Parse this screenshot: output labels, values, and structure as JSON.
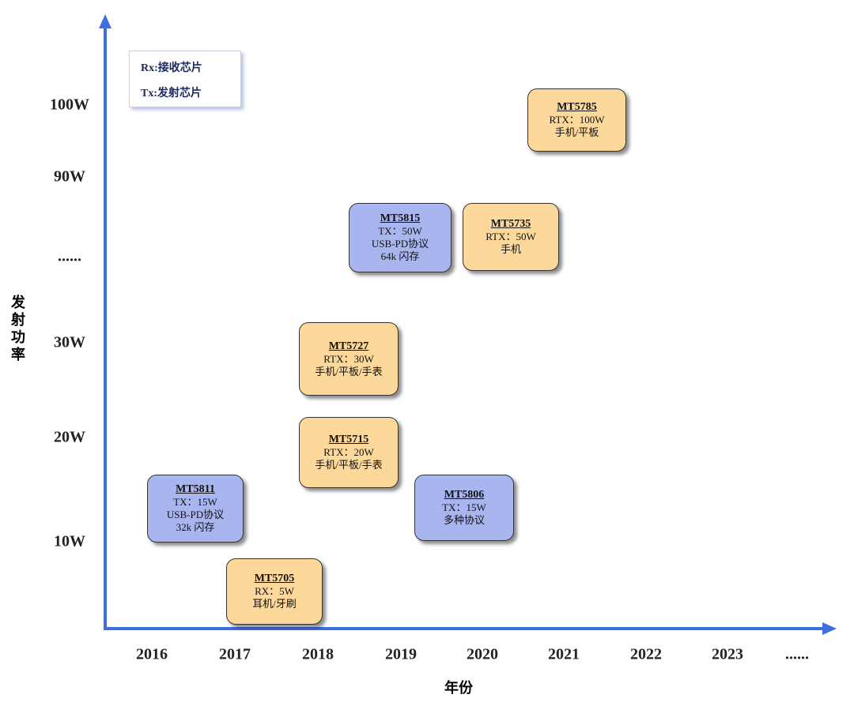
{
  "y_axis": {
    "title": "发射功率",
    "labels": [
      "100W",
      "90W",
      "......",
      "30W",
      "20W",
      "10W"
    ]
  },
  "x_axis": {
    "title": "年份",
    "labels": [
      "2016",
      "2017",
      "2018",
      "2019",
      "2020",
      "2021",
      "2022",
      "2023",
      "......"
    ]
  },
  "legend": [
    "Rx:接收芯片",
    "Tx:发射芯片"
  ],
  "products": [
    {
      "name": "MT5785",
      "lines": [
        "RTX：100W",
        "手机/平板"
      ]
    },
    {
      "name": "MT5815",
      "lines": [
        "TX：50W",
        "USB-PD协议",
        "64k 闪存"
      ]
    },
    {
      "name": "MT5735",
      "lines": [
        "RTX：50W",
        "手机"
      ]
    },
    {
      "name": "MT5727",
      "lines": [
        "RTX：30W",
        "手机/平板/手表"
      ]
    },
    {
      "name": "MT5715",
      "lines": [
        "RTX：20W",
        "手机/平板/手表"
      ]
    },
    {
      "name": "MT5811",
      "lines": [
        "TX：15W",
        "USB-PD协议",
        "32k 闪存"
      ]
    },
    {
      "name": "MT5806",
      "lines": [
        "TX：15W",
        "多种协议"
      ]
    },
    {
      "name": "MT5705",
      "lines": [
        "RX：5W",
        "耳机/牙刷"
      ]
    }
  ]
}
